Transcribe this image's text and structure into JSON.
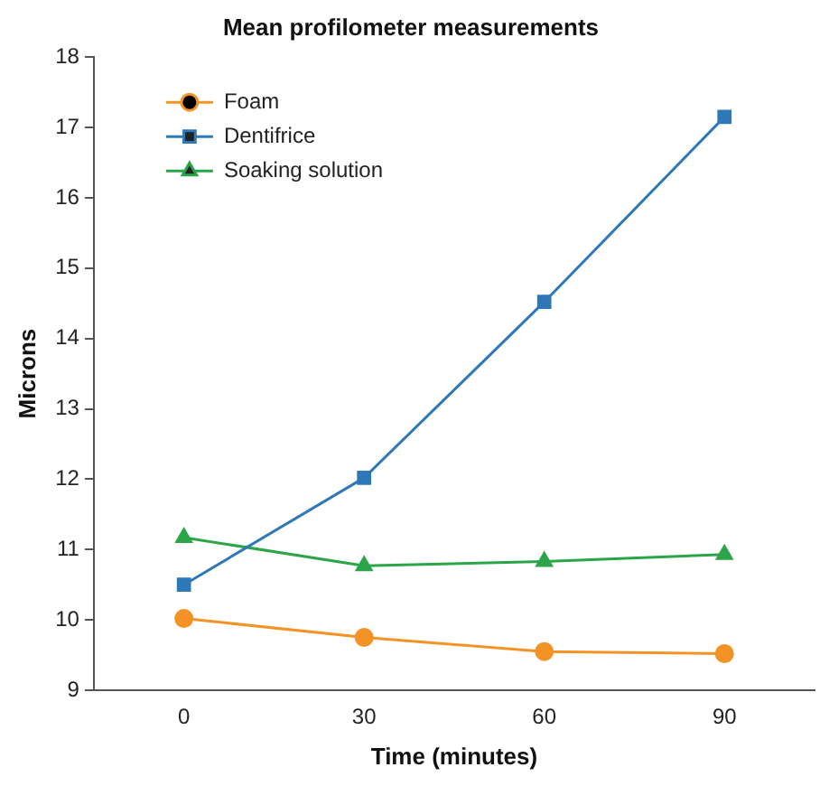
{
  "chart_data": {
    "type": "line",
    "title": "Mean profilometer measurements",
    "xlabel": "Time (minutes)",
    "ylabel": "Microns",
    "categories": [
      "0",
      "30",
      "60",
      "90"
    ],
    "series": [
      {
        "name": "Foam",
        "color": "#f39325",
        "values": [
          10.02,
          9.75,
          9.55,
          9.52
        ],
        "marker": "circle"
      },
      {
        "name": "Dentifrice",
        "color": "#2f78b7",
        "values": [
          10.5,
          12.02,
          14.52,
          17.15
        ],
        "marker": "square"
      },
      {
        "name": "Soaking solution",
        "color": "#2ca54a",
        "values": [
          11.17,
          10.77,
          10.83,
          10.93
        ],
        "marker": "triangle"
      }
    ],
    "ylim": [
      9,
      18
    ],
    "yticks": [
      9,
      10,
      11,
      12,
      13,
      14,
      15,
      16,
      17,
      18
    ],
    "grid": false,
    "legend": "top left"
  }
}
